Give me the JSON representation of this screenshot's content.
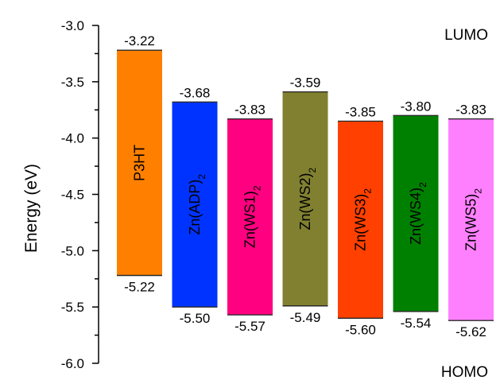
{
  "chart_data": {
    "type": "floating-bar",
    "ylabel": "Energy (eV)",
    "ylim": [
      -6.0,
      -3.0
    ],
    "yticks": [
      "-3.0",
      "-3.5",
      "-4.0",
      "-4.5",
      "-5.0",
      "-5.5",
      "-6.0"
    ],
    "top_label": "LUMO",
    "bottom_label": "HOMO",
    "grid": false,
    "bars": [
      {
        "name": "P3HT",
        "sub": "",
        "lumo": -3.22,
        "homo": -5.22,
        "lumo_label": "-3.22",
        "homo_label": "-5.22",
        "color": "#ff8000"
      },
      {
        "name": "Zn(ADP)",
        "sub": "2",
        "lumo": -3.68,
        "homo": -5.5,
        "lumo_label": "-3.68",
        "homo_label": "-5.50",
        "color": "#0033ff"
      },
      {
        "name": "Zn(WS1)",
        "sub": "2",
        "lumo": -3.83,
        "homo": -5.57,
        "lumo_label": "-3.83",
        "homo_label": "-5.57",
        "color": "#ff0080"
      },
      {
        "name": "Zn(WS2)",
        "sub": "2",
        "lumo": -3.59,
        "homo": -5.49,
        "lumo_label": "-3.59",
        "homo_label": "-5.49",
        "color": "#808030"
      },
      {
        "name": "Zn(WS3)",
        "sub": "2",
        "lumo": -3.85,
        "homo": -5.6,
        "lumo_label": "-3.85",
        "homo_label": "-5.60",
        "color": "#ff4000"
      },
      {
        "name": "Zn(WS4)",
        "sub": "2",
        "lumo": -3.8,
        "homo": -5.54,
        "lumo_label": "-3.80",
        "homo_label": "-5.54",
        "color": "#008000"
      },
      {
        "name": "Zn(WS5)",
        "sub": "2",
        "lumo": -3.83,
        "homo": -5.62,
        "lumo_label": "-3.83",
        "homo_label": "-5.62",
        "color": "#ff80ff"
      }
    ]
  }
}
